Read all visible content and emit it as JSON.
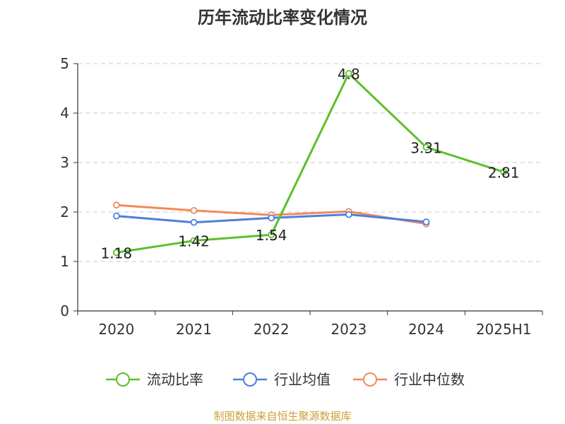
{
  "chart_data": {
    "type": "line",
    "title": "历年流动比率变化情况",
    "categories": [
      "2020",
      "2021",
      "2022",
      "2023",
      "2024",
      "2025H1"
    ],
    "ylim": [
      0,
      5
    ],
    "yticks": [
      0,
      1,
      2,
      3,
      4,
      5
    ],
    "ytick_labels": [
      "0",
      "1",
      "2",
      "3",
      "4",
      "5"
    ],
    "grid": true,
    "legend_position": "bottom-center",
    "series": [
      {
        "name": "流动比率",
        "color": "#5bc02a",
        "values": [
          1.18,
          1.42,
          1.54,
          4.8,
          3.31,
          2.81
        ],
        "labels": [
          "1.18",
          "1.42",
          "1.54",
          "4.8",
          "3.31",
          "2.81"
        ]
      },
      {
        "name": "行业均值",
        "color": "#4c7fdc",
        "values": [
          1.92,
          1.79,
          1.88,
          1.95,
          1.8,
          null
        ]
      },
      {
        "name": "行业中位数",
        "color": "#f28a5b",
        "values": [
          2.14,
          2.03,
          1.94,
          2.01,
          1.76,
          null
        ]
      }
    ],
    "source": "制图数据来自恒生聚源数据库"
  }
}
